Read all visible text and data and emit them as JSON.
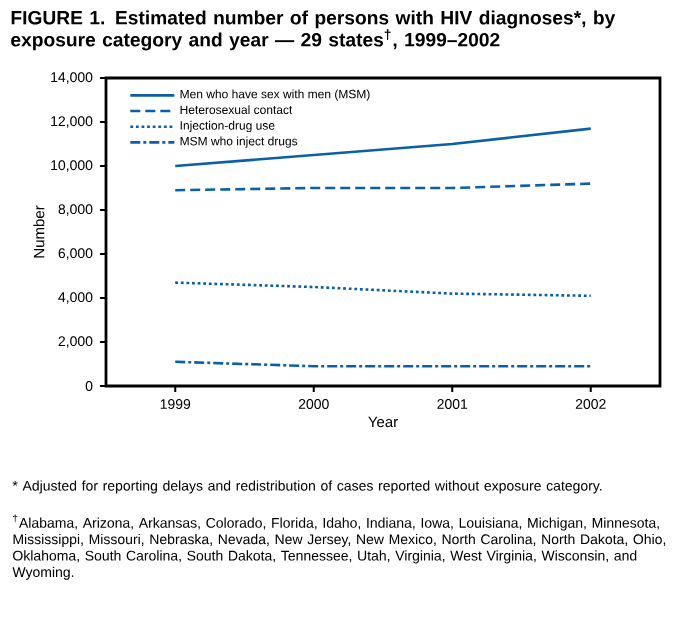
{
  "chart_data": {
    "type": "line",
    "title": "FIGURE 1. Estimated number of persons with HIV diagnoses*, by exposure category and year — 29 states$^{†}$, 1999–2002",
    "xlabel": "Year",
    "ylabel": "Number",
    "x": [
      1999,
      2000,
      2001,
      2002
    ],
    "series": [
      {
        "name": "Men who have sex with men (MSM)",
        "color": "#0a5fa8",
        "line_style": "solid",
        "values": [
          10000,
          10500,
          11000,
          11700
        ]
      },
      {
        "name": "Heterosexual contact",
        "color": "#0a5fa8",
        "line_style": "dashed",
        "values": [
          8900,
          9000,
          9000,
          9200
        ]
      },
      {
        "name": "Injection-drug use",
        "color": "#0a5fa8",
        "line_style": "dotted",
        "values": [
          4700,
          4500,
          4200,
          4100
        ]
      },
      {
        "name": "MSM who inject drugs",
        "color": "#0a5fa8",
        "line_style": "dashdot",
        "values": [
          1100,
          900,
          900,
          900
        ]
      }
    ],
    "xlim": [
      1998.5,
      2002.5
    ],
    "ylim": [
      0,
      14000
    ],
    "xticks": [
      1999,
      2000,
      2001,
      2002
    ],
    "yticks": [
      0,
      {
        "value": 2000,
        "label": "2,000"
      },
      {
        "value": 4000,
        "label": "4,000"
      },
      {
        "value": 6000,
        "label": "6,000"
      },
      {
        "value": 8000,
        "label": "8,000"
      },
      {
        "value": 10000,
        "label": "10,000"
      },
      {
        "value": 12000,
        "label": "12,000"
      },
      {
        "value": 14000,
        "label": "14,000"
      }
    ],
    "grid": false,
    "legend": "top left",
    "annotations": [
      "* Adjusted for reporting delays and redistribution of cases reported without exposure category.",
      "$^{†}$Alabama, Arizona, Arkansas, Colorado, Florida, Idaho, Indiana, Iowa, Louisiana, Michigan, Minnesota, Mississippi, Missouri, Nebraska, Nevada, New Jersey, New Mexico, North Carolina, North Dakota, Ohio, Oklahoma, South Carolina, South Dakota, Tennessee, Utah, Virginia, West Virginia, Wisconsin, and Wyoming."
    ]
  }
}
